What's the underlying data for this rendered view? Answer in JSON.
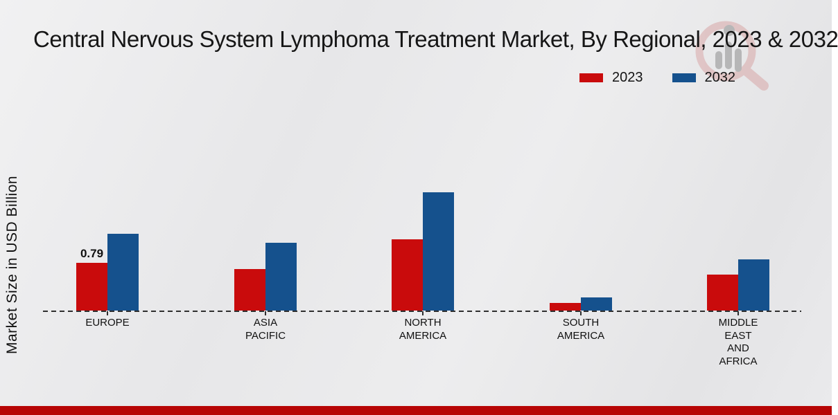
{
  "title": "Central Nervous System Lymphoma Treatment Market, By Regional, 2023 & 2032",
  "ylabel": "Market Size in USD Billion",
  "legend": [
    {
      "label": "2023",
      "color": "#c90b0c"
    },
    {
      "label": "2032",
      "color": "#15518d"
    }
  ],
  "colors": {
    "bar_2023": "#c90b0c",
    "bar_2032": "#15518d",
    "footer_strip": "#b70505",
    "baseline": "#2e2e2e",
    "background": "#e8e8ea"
  },
  "watermark_icon": "magnifier-bar-chart-logo",
  "chart_data": {
    "type": "bar",
    "categories": [
      "EUROPE",
      "ASIA\nPACIFIC",
      "NORTH\nAMERICA",
      "SOUTH\nAMERICA",
      "MIDDLE\nEAST\nAND\nAFRICA"
    ],
    "series": [
      {
        "name": "2023",
        "color": "#c90b0c",
        "values": [
          0.79,
          0.69,
          1.18,
          0.13,
          0.6
        ]
      },
      {
        "name": "2032",
        "color": "#15518d",
        "values": [
          1.28,
          1.13,
          1.96,
          0.22,
          0.85
        ]
      }
    ],
    "annotations": [
      {
        "series": 0,
        "category": 0,
        "text": "0.79"
      }
    ],
    "title": "Central Nervous System Lymphoma Treatment Market, By Regional, 2023 & 2032",
    "xlabel": "",
    "ylabel": "Market Size in USD Billion",
    "ylim": [
      0,
      2.2
    ],
    "grid": false,
    "legend_position": "top-right",
    "axis_style": "dashed-baseline-only"
  }
}
